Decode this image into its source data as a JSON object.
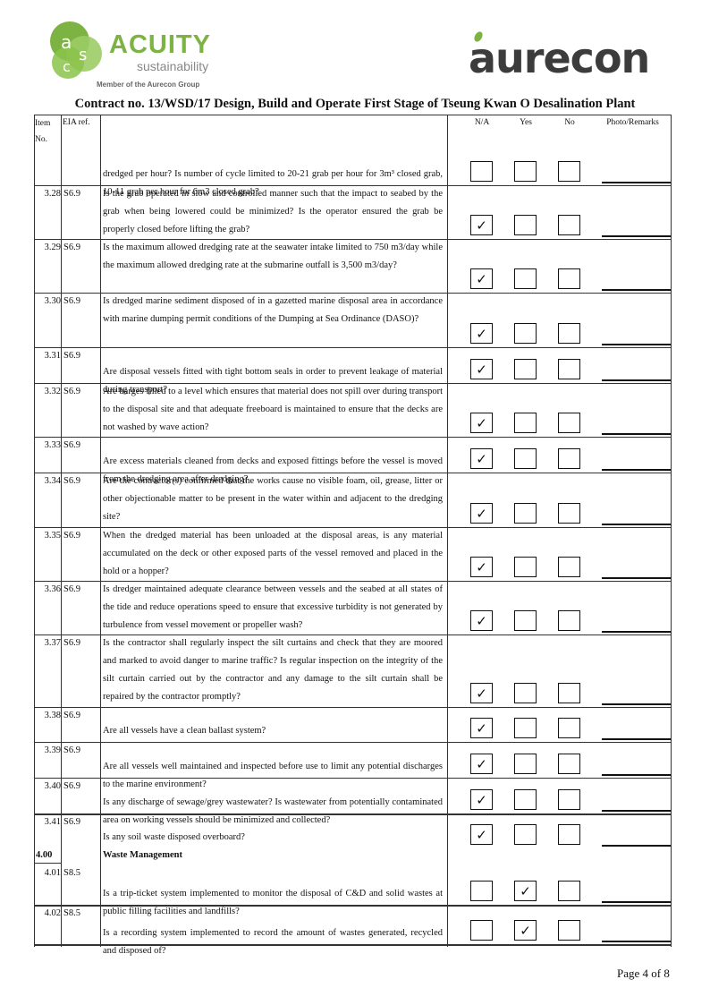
{
  "header": {
    "acuity_name": "ACUITY",
    "acuity_tagline": "sustainability",
    "acuity_member": "Member of the Aurecon Group",
    "aurecon_name": "aurecon"
  },
  "title": "Contract no.  13/WSD/17 Design, Build and Operate First Stage of Tseung Kwan O Desalination Plant",
  "table": {
    "columns": [
      "Item No.",
      "EIA ref.",
      "",
      "N/A",
      "Yes",
      "No",
      "Photo/Remarks"
    ],
    "rows": [
      [
        "",
        "",
        "dredged per hour? Is number of cycle limited to 20-21 grab per hour for 3m³ closed grab, 10-11 grab per hour for 6m3 closed grab?"
      ],
      [
        "3.28",
        "S6.9",
        "Is the grab operated in slow and controlled manner such that the impact to seabed by the grab when being lowered could be minimized? Is the operator ensured the grab be properly closed before lifting the grab?"
      ],
      [
        "3.29",
        "S6.9",
        "Is the maximum allowed dredging rate at the seawater intake limited to 750 m3/day while the maximum allowed dredging rate at the submarine outfall is 3,500 m3/day?"
      ],
      [
        "3.30",
        "S6.9",
        "Is dredged marine sediment disposed of in a gazetted marine disposal area in accordance with marine dumping permit conditions of the Dumping at Sea Ordinance (DASO)?"
      ],
      [
        "3.31",
        "S6.9",
        "Are disposal vessels fitted with tight bottom seals in order to prevent leakage of material during transport?"
      ],
      [
        "3.32",
        "S6.9",
        "Are barges filled to a level which ensures that material does not spill over during transport to the disposal site and that adequate freeboard is maintained to ensure that the decks are not washed by wave action?"
      ],
      [
        "3.33",
        "S6.9",
        "Are excess materials cleaned from decks and exposed fittings before the vessel is moved from the dredging area after dredging?"
      ],
      [
        "3.34",
        "S6.9",
        "Are the contractor(s) confirmed that the works cause no visible foam, oil, grease, litter or other objectionable matter to be present in the water within and adjacent to the dredging site?"
      ],
      [
        "3.35",
        "S6.9",
        "When the dredged material has been unloaded at the disposal areas, is any material accumulated on the deck or other exposed parts of the vessel removed and placed in the hold or a hopper?"
      ],
      [
        "3.36",
        "S6.9",
        "Is dredger maintained adequate clearance between vessels and the seabed at all states of the tide and reduce operations speed to ensure that excessive turbidity is not generated by turbulence from vessel movement or propeller wash?"
      ],
      [
        "3.37",
        "S6.9",
        "Is the contractor shall regularly inspect the silt curtains and check that they are moored and marked to avoid danger to marine traffic? Is regular inspection on the integrity of the silt curtain carried out by the contractor and any damage to the silt curtain shall be repaired by the contractor promptly?"
      ],
      [
        "3.38",
        "S6.9",
        "Are all vessels have a clean ballast system?"
      ],
      [
        "3.39",
        "S6.9",
        "Are all vessels well maintained and inspected before use to limit any potential discharges to the marine environment?"
      ],
      [
        "3.40",
        "S6.9",
        "Is any discharge of sewage/grey wastewater? Is wastewater from potentially contaminated area on working vessels should be minimized and collected?"
      ],
      [
        "3.41",
        "S6.9",
        "Is any soil waste disposed overboard?"
      ],
      [
        "4.00",
        "",
        "Waste Management"
      ],
      [
        "4.01",
        "S8.5",
        "Is a trip-ticket system implemented to monitor the disposal of C&D and solid wastes at public filling facilities and landfills?"
      ],
      [
        "4.02",
        "S8.5",
        "Is a recording system implemented to record the amount of wastes generated, recycled and disposed of?"
      ]
    ]
  },
  "footer": "Page 4 of 8"
}
